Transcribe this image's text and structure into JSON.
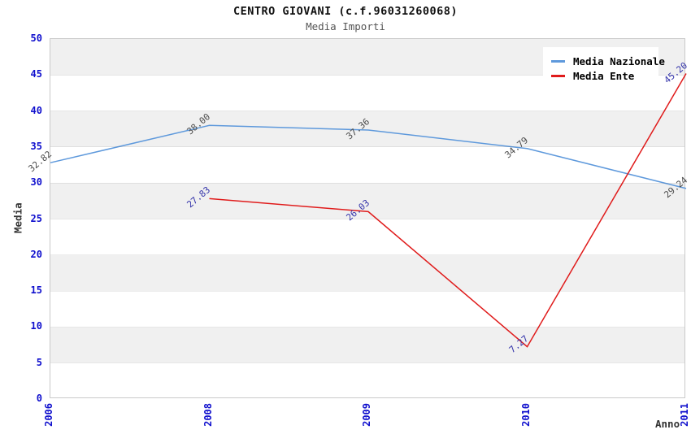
{
  "chart_data": {
    "type": "line",
    "title": "CENTRO GIOVANI (c.f.96031260068)",
    "subtitle": "Media Importi",
    "xlabel": "Anno",
    "ylabel": "Media",
    "categories": [
      "2006",
      "2008",
      "2009",
      "2010",
      "2011"
    ],
    "ylim": [
      0,
      50
    ],
    "ytick_step": 5,
    "grid": "horizontal-bands",
    "legend_position": "top-right",
    "series": [
      {
        "name": "Media Nazionale",
        "color": "#5e99dc",
        "values": [
          32.82,
          38.0,
          37.36,
          34.79,
          29.24
        ],
        "labels": [
          "32.82",
          "38.00",
          "37.36",
          "34.79",
          "29.24"
        ],
        "label_color": "#4a4a4a"
      },
      {
        "name": "Media Ente",
        "color": "#e01b1b",
        "values": [
          null,
          27.83,
          26.03,
          7.27,
          45.2
        ],
        "labels": [
          null,
          "27.83",
          "26.03",
          "7.27",
          "45.20"
        ],
        "label_color": "#3333aa"
      }
    ],
    "colors": {
      "tick_label": "#0f0fcd",
      "band": "#f0f0f0",
      "plot_border": "#c9c9c9",
      "title": "#111111",
      "subtitle": "#555555",
      "axis_title": "#333333"
    }
  }
}
